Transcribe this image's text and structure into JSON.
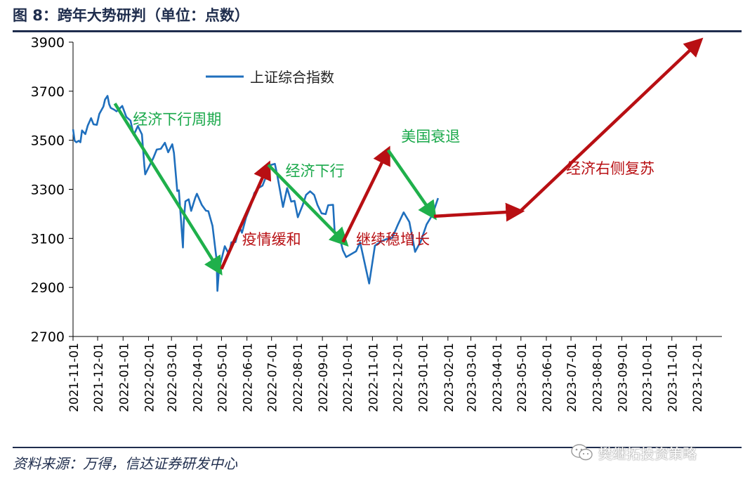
{
  "header": {
    "title": "图 8：跨年大势研判（单位：点数）"
  },
  "footer": {
    "source": "资料来源：万得，信达证券研发中心",
    "watermark_text": "樊继拓投资策略",
    "watermark_icon": "wechat-icon"
  },
  "colors": {
    "line": "#1f6fbd",
    "green_arrow": "#1fb04b",
    "red_arrow": "#b80f13",
    "green_text": "#19a84a",
    "red_text": "#b80f13",
    "frame": "#1f2d4d"
  },
  "chart_data": {
    "type": "line",
    "title": "",
    "xlabel": "",
    "ylabel": "",
    "ylim": [
      2700,
      3900
    ],
    "yticks": [
      2700,
      2900,
      3100,
      3300,
      3500,
      3700,
      3900
    ],
    "x_ticks": [
      "2021-11-01",
      "2021-12-01",
      "2022-01-01",
      "2022-02-01",
      "2022-03-01",
      "2022-04-01",
      "2022-05-01",
      "2022-06-01",
      "2022-07-01",
      "2022-08-01",
      "2022-09-01",
      "2022-10-01",
      "2022-11-01",
      "2022-12-01",
      "2023-01-01",
      "2023-02-01",
      "2023-03-01",
      "2023-04-01",
      "2023-05-01",
      "2023-06-01",
      "2023-07-01",
      "2023-08-01",
      "2023-09-01",
      "2023-10-01",
      "2023-11-01",
      "2023-12-01"
    ],
    "legend": {
      "position": "top-left",
      "entry": "上证综合指数"
    },
    "series": [
      {
        "name": "上证综合指数",
        "points": [
          [
            "2021-11-01",
            3545
          ],
          [
            "2021-11-03",
            3498
          ],
          [
            "2021-11-05",
            3492
          ],
          [
            "2021-11-08",
            3498
          ],
          [
            "2021-11-10",
            3492
          ],
          [
            "2021-11-12",
            3540
          ],
          [
            "2021-11-16",
            3525
          ],
          [
            "2021-11-19",
            3560
          ],
          [
            "2021-11-23",
            3590
          ],
          [
            "2021-11-26",
            3565
          ],
          [
            "2021-11-30",
            3563
          ],
          [
            "2021-12-03",
            3607
          ],
          [
            "2021-12-08",
            3637
          ],
          [
            "2021-12-10",
            3666
          ],
          [
            "2021-12-13",
            3681
          ],
          [
            "2021-12-15",
            3647
          ],
          [
            "2021-12-17",
            3632
          ],
          [
            "2021-12-21",
            3625
          ],
          [
            "2021-12-24",
            3618
          ],
          [
            "2021-12-28",
            3630
          ],
          [
            "2021-12-31",
            3640
          ],
          [
            "2022-01-05",
            3595
          ],
          [
            "2022-01-10",
            3580
          ],
          [
            "2022-01-14",
            3521
          ],
          [
            "2022-01-19",
            3558
          ],
          [
            "2022-01-24",
            3524
          ],
          [
            "2022-01-27",
            3395
          ],
          [
            "2022-01-28",
            3361
          ],
          [
            "2022-02-07",
            3429
          ],
          [
            "2022-02-11",
            3462
          ],
          [
            "2022-02-16",
            3465
          ],
          [
            "2022-02-21",
            3490
          ],
          [
            "2022-02-25",
            3451
          ],
          [
            "2022-03-02",
            3484
          ],
          [
            "2022-03-04",
            3448
          ],
          [
            "2022-03-08",
            3293
          ],
          [
            "2022-03-10",
            3296
          ],
          [
            "2022-03-15",
            3063
          ],
          [
            "2022-03-16",
            3170
          ],
          [
            "2022-03-18",
            3251
          ],
          [
            "2022-03-22",
            3259
          ],
          [
            "2022-03-25",
            3212
          ],
          [
            "2022-03-30",
            3266
          ],
          [
            "2022-04-01",
            3282
          ],
          [
            "2022-04-07",
            3236
          ],
          [
            "2022-04-12",
            3213
          ],
          [
            "2022-04-15",
            3211
          ],
          [
            "2022-04-20",
            3151
          ],
          [
            "2022-04-25",
            3014
          ],
          [
            "2022-04-26",
            2886
          ],
          [
            "2022-04-28",
            2975
          ],
          [
            "2022-05-05",
            3068
          ],
          [
            "2022-05-10",
            3036
          ],
          [
            "2022-05-13",
            3084
          ],
          [
            "2022-05-18",
            3085
          ],
          [
            "2022-05-23",
            3146
          ],
          [
            "2022-05-26",
            3123
          ],
          [
            "2022-05-31",
            3186
          ],
          [
            "2022-06-06",
            3236
          ],
          [
            "2022-06-10",
            3285
          ],
          [
            "2022-06-15",
            3305
          ],
          [
            "2022-06-20",
            3315
          ],
          [
            "2022-06-24",
            3349
          ],
          [
            "2022-06-30",
            3399
          ],
          [
            "2022-07-05",
            3404
          ],
          [
            "2022-07-08",
            3356
          ],
          [
            "2022-07-15",
            3228
          ],
          [
            "2022-07-20",
            3305
          ],
          [
            "2022-07-25",
            3250
          ],
          [
            "2022-07-29",
            3253
          ],
          [
            "2022-08-02",
            3186
          ],
          [
            "2022-08-08",
            3236
          ],
          [
            "2022-08-12",
            3277
          ],
          [
            "2022-08-17",
            3292
          ],
          [
            "2022-08-22",
            3277
          ],
          [
            "2022-08-26",
            3236
          ],
          [
            "2022-08-31",
            3202
          ],
          [
            "2022-09-05",
            3199
          ],
          [
            "2022-09-08",
            3235
          ],
          [
            "2022-09-14",
            3237
          ],
          [
            "2022-09-16",
            3126
          ],
          [
            "2022-09-21",
            3117
          ],
          [
            "2022-09-26",
            3051
          ],
          [
            "2022-09-30",
            3024
          ],
          [
            "2022-10-12",
            3047
          ],
          [
            "2022-10-17",
            3084
          ],
          [
            "2022-10-24",
            2977
          ],
          [
            "2022-10-28",
            2916
          ],
          [
            "2022-11-04",
            3070
          ],
          [
            "2022-11-11",
            3087
          ],
          [
            "2022-11-18",
            3097
          ],
          [
            "2022-11-25",
            3101
          ],
          [
            "2022-12-02",
            3156
          ],
          [
            "2022-12-09",
            3206
          ],
          [
            "2022-12-16",
            3167
          ],
          [
            "2022-12-23",
            3045
          ],
          [
            "2022-12-30",
            3089
          ],
          [
            "2023-01-06",
            3157
          ],
          [
            "2023-01-13",
            3195
          ],
          [
            "2023-01-20",
            3264
          ]
        ]
      }
    ],
    "trend_arrows": [
      {
        "color": "green",
        "points": [
          [
            "2021-12-22",
            3650
          ],
          [
            "2022-04-29",
            2965
          ]
        ]
      },
      {
        "color": "red",
        "points": [
          [
            "2022-05-01",
            2975
          ],
          [
            "2022-06-27",
            3400
          ]
        ]
      },
      {
        "color": "green",
        "points": [
          [
            "2022-06-27",
            3400
          ],
          [
            "2022-09-29",
            3080
          ]
        ]
      },
      {
        "color": "red",
        "points": [
          [
            "2022-09-26",
            3085
          ],
          [
            "2022-11-20",
            3460
          ]
        ]
      },
      {
        "color": "green",
        "points": [
          [
            "2022-11-20",
            3460
          ],
          [
            "2023-01-15",
            3190
          ]
        ]
      },
      {
        "color": "red",
        "points": [
          [
            "2023-01-15",
            3190
          ],
          [
            "2023-04-30",
            3210
          ]
        ]
      },
      {
        "color": "red",
        "points": [
          [
            "2023-04-30",
            3210
          ],
          [
            "2023-12-05",
            3905
          ]
        ]
      }
    ],
    "annotations": [
      {
        "text": "经济下行周期",
        "color": "green",
        "x": "2022-01-13",
        "y": 3565
      },
      {
        "text": "疫情缓和",
        "color": "red",
        "x": "2022-05-26",
        "y": 3075
      },
      {
        "text": "经济下行",
        "color": "green",
        "x": "2022-07-18",
        "y": 3355
      },
      {
        "text": "继续稳增长",
        "color": "red",
        "x": "2022-10-12",
        "y": 3075
      },
      {
        "text": "美国衰退",
        "color": "green",
        "x": "2022-12-06",
        "y": 3495
      },
      {
        "text": "经济右侧复苏",
        "color": "red",
        "x": "2023-06-25",
        "y": 3365
      }
    ]
  }
}
